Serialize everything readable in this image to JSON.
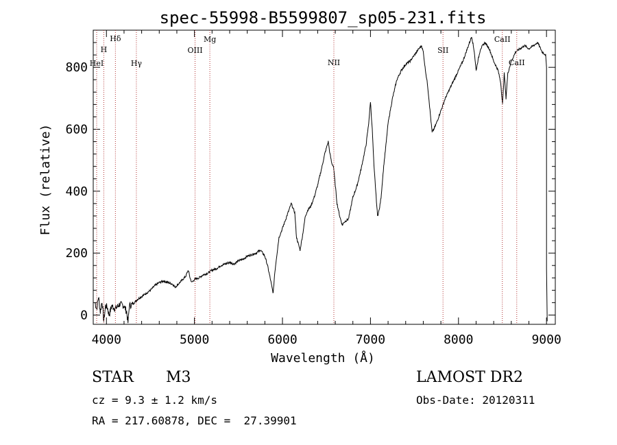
{
  "chart_data": {
    "type": "line",
    "title": "spec-55998-B5599807_sp05-231.fits",
    "xlabel": "Wavelength (Å)",
    "ylabel": "Flux (relative)",
    "xlim": [
      3850,
      9100
    ],
    "ylim": [
      -30,
      920
    ],
    "x_ticks": [
      4000,
      5000,
      6000,
      7000,
      8000,
      9000
    ],
    "y_ticks": [
      0,
      200,
      400,
      600,
      800
    ],
    "x_tick_labels": [
      "4000",
      "5000",
      "6000",
      "7000",
      "8000",
      "9000"
    ],
    "y_tick_labels": [
      "0",
      "200",
      "400",
      "600",
      "800"
    ],
    "grid": false,
    "series": [
      {
        "x": [
          3870,
          3890,
          3910,
          3930,
          3950,
          3970,
          3990,
          4010,
          4030,
          4060,
          4100,
          4150,
          4200,
          4230,
          4245,
          4260,
          4300,
          4350,
          4400,
          4450,
          4500,
          4550,
          4600,
          4650,
          4700,
          4750,
          4780,
          4800,
          4850,
          4900,
          4930,
          4950,
          4970,
          5000,
          5050,
          5100,
          5150,
          5200,
          5250,
          5300,
          5350,
          5400,
          5450,
          5500,
          5550,
          5600,
          5650,
          5700,
          5750,
          5800,
          5830,
          5860,
          5880,
          5895,
          5910,
          5930,
          5960,
          6000,
          6050,
          6100,
          6140,
          6160,
          6180,
          6200,
          6230,
          6260,
          6290,
          6320,
          6360,
          6400,
          6450,
          6480,
          6500,
          6520,
          6540,
          6560,
          6580,
          6600,
          6620,
          6650,
          6680,
          6700,
          6750,
          6800,
          6850,
          6900,
          6950,
          6980,
          7000,
          7020,
          7040,
          7060,
          7080,
          7100,
          7120,
          7150,
          7180,
          7200,
          7250,
          7300,
          7350,
          7400,
          7450,
          7500,
          7550,
          7580,
          7600,
          7620,
          7650,
          7680,
          7700,
          7720,
          7750,
          7800,
          7850,
          7900,
          7950,
          8000,
          8050,
          8100,
          8150,
          8180,
          8200,
          8220,
          8250,
          8300,
          8350,
          8400,
          8450,
          8480,
          8500,
          8520,
          8540,
          8560,
          8600,
          8650,
          8700,
          8750,
          8800,
          8850,
          8900,
          8950,
          8990,
          9000
        ],
        "y": [
          40,
          20,
          60,
          10,
          45,
          -20,
          30,
          25,
          0,
          30,
          20,
          35,
          30,
          10,
          -25,
          30,
          35,
          50,
          60,
          70,
          80,
          95,
          105,
          110,
          105,
          100,
          90,
          95,
          110,
          125,
          145,
          120,
          105,
          115,
          120,
          130,
          135,
          145,
          150,
          160,
          165,
          170,
          165,
          175,
          180,
          190,
          195,
          200,
          210,
          190,
          160,
          120,
          90,
          70,
          130,
          180,
          250,
          280,
          320,
          360,
          330,
          250,
          230,
          210,
          260,
          320,
          340,
          350,
          380,
          420,
          480,
          520,
          540,
          560,
          520,
          490,
          480,
          420,
          360,
          320,
          290,
          300,
          310,
          380,
          420,
          480,
          550,
          620,
          690,
          600,
          480,
          400,
          320,
          340,
          380,
          480,
          560,
          620,
          700,
          760,
          790,
          810,
          820,
          840,
          860,
          870,
          850,
          800,
          740,
          650,
          590,
          600,
          620,
          660,
          700,
          730,
          760,
          790,
          820,
          860,
          900,
          850,
          790,
          820,
          860,
          880,
          860,
          820,
          790,
          750,
          680,
          780,
          700,
          780,
          820,
          850,
          860,
          870,
          860,
          870,
          880,
          850,
          840,
          800
        ]
      }
    ],
    "line_labels": [
      {
        "x": 3889,
        "label": "HeI"
      },
      {
        "x": 3970,
        "label": "H"
      },
      {
        "x": 4102,
        "label": "Hδ"
      },
      {
        "x": 4340,
        "label": "Hγ"
      },
      {
        "x": 5007,
        "label": "OIII"
      },
      {
        "x": 5175,
        "label": "Mg"
      },
      {
        "x": 6584,
        "label": "NII"
      },
      {
        "x": 7824,
        "label": "SII"
      },
      {
        "x": 8498,
        "label": "CaII"
      },
      {
        "x": 8662,
        "label": "CaII"
      }
    ]
  },
  "info": {
    "object_class": "STAR",
    "subclass": "M3",
    "cz": "cz = 9.3 ± 1.2 km/s",
    "radec": "RA = 217.60878, DEC =  27.39901",
    "survey": "LAMOST DR2",
    "obs_date": "Obs-Date: 20120311"
  }
}
